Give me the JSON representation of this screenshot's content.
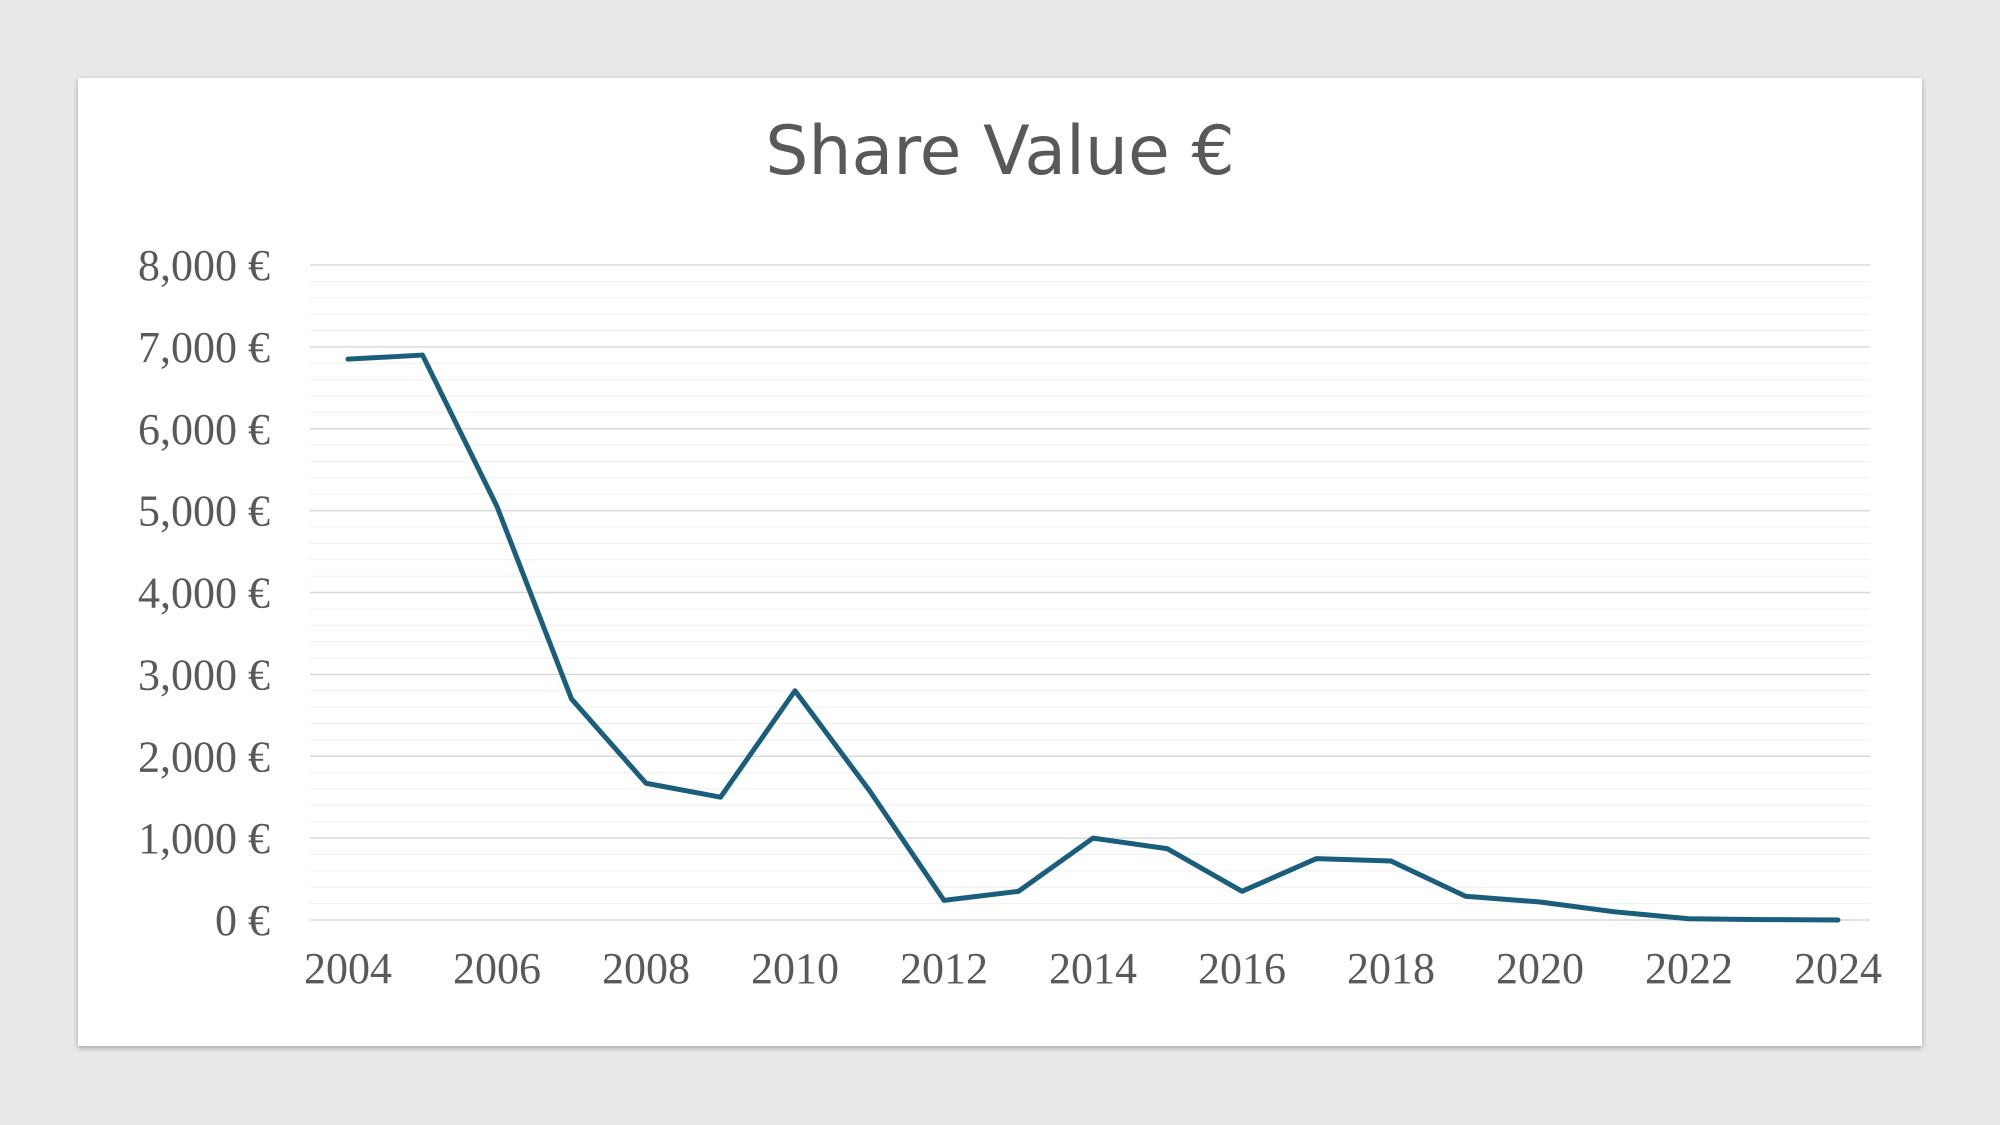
{
  "chart_data": {
    "type": "line",
    "title": "Share Value €",
    "xlabel": "",
    "ylabel": "",
    "x": [
      2004,
      2005,
      2006,
      2007,
      2008,
      2009,
      2010,
      2011,
      2012,
      2013,
      2014,
      2015,
      2016,
      2017,
      2018,
      2019,
      2020,
      2021,
      2022,
      2023,
      2024
    ],
    "series": [
      {
        "values": [
          6850,
          6900,
          5050,
          2700,
          1670,
          1500,
          2800,
          1580,
          240,
          350,
          1000,
          870,
          350,
          750,
          720,
          290,
          220,
          100,
          15,
          5,
          0
        ]
      }
    ],
    "xticks": [
      "2004",
      "2006",
      "2008",
      "2010",
      "2012",
      "2014",
      "2016",
      "2018",
      "2020",
      "2022",
      "2024"
    ],
    "yticks": [
      "0 €",
      "1,000 €",
      "2,000 €",
      "3,000 €",
      "4,000 €",
      "5,000 €",
      "6,000 €",
      "7,000 €",
      "8,000 €"
    ],
    "ylim": [
      0,
      8000
    ],
    "xlim": [
      2004,
      2024
    ],
    "grid": "horizontal major and minor",
    "legend": "none",
    "colors": {
      "line": "#1a5e7e",
      "major_grid": "#d9d9d9",
      "minor_grid": "#efefef",
      "text": "#595959"
    }
  }
}
